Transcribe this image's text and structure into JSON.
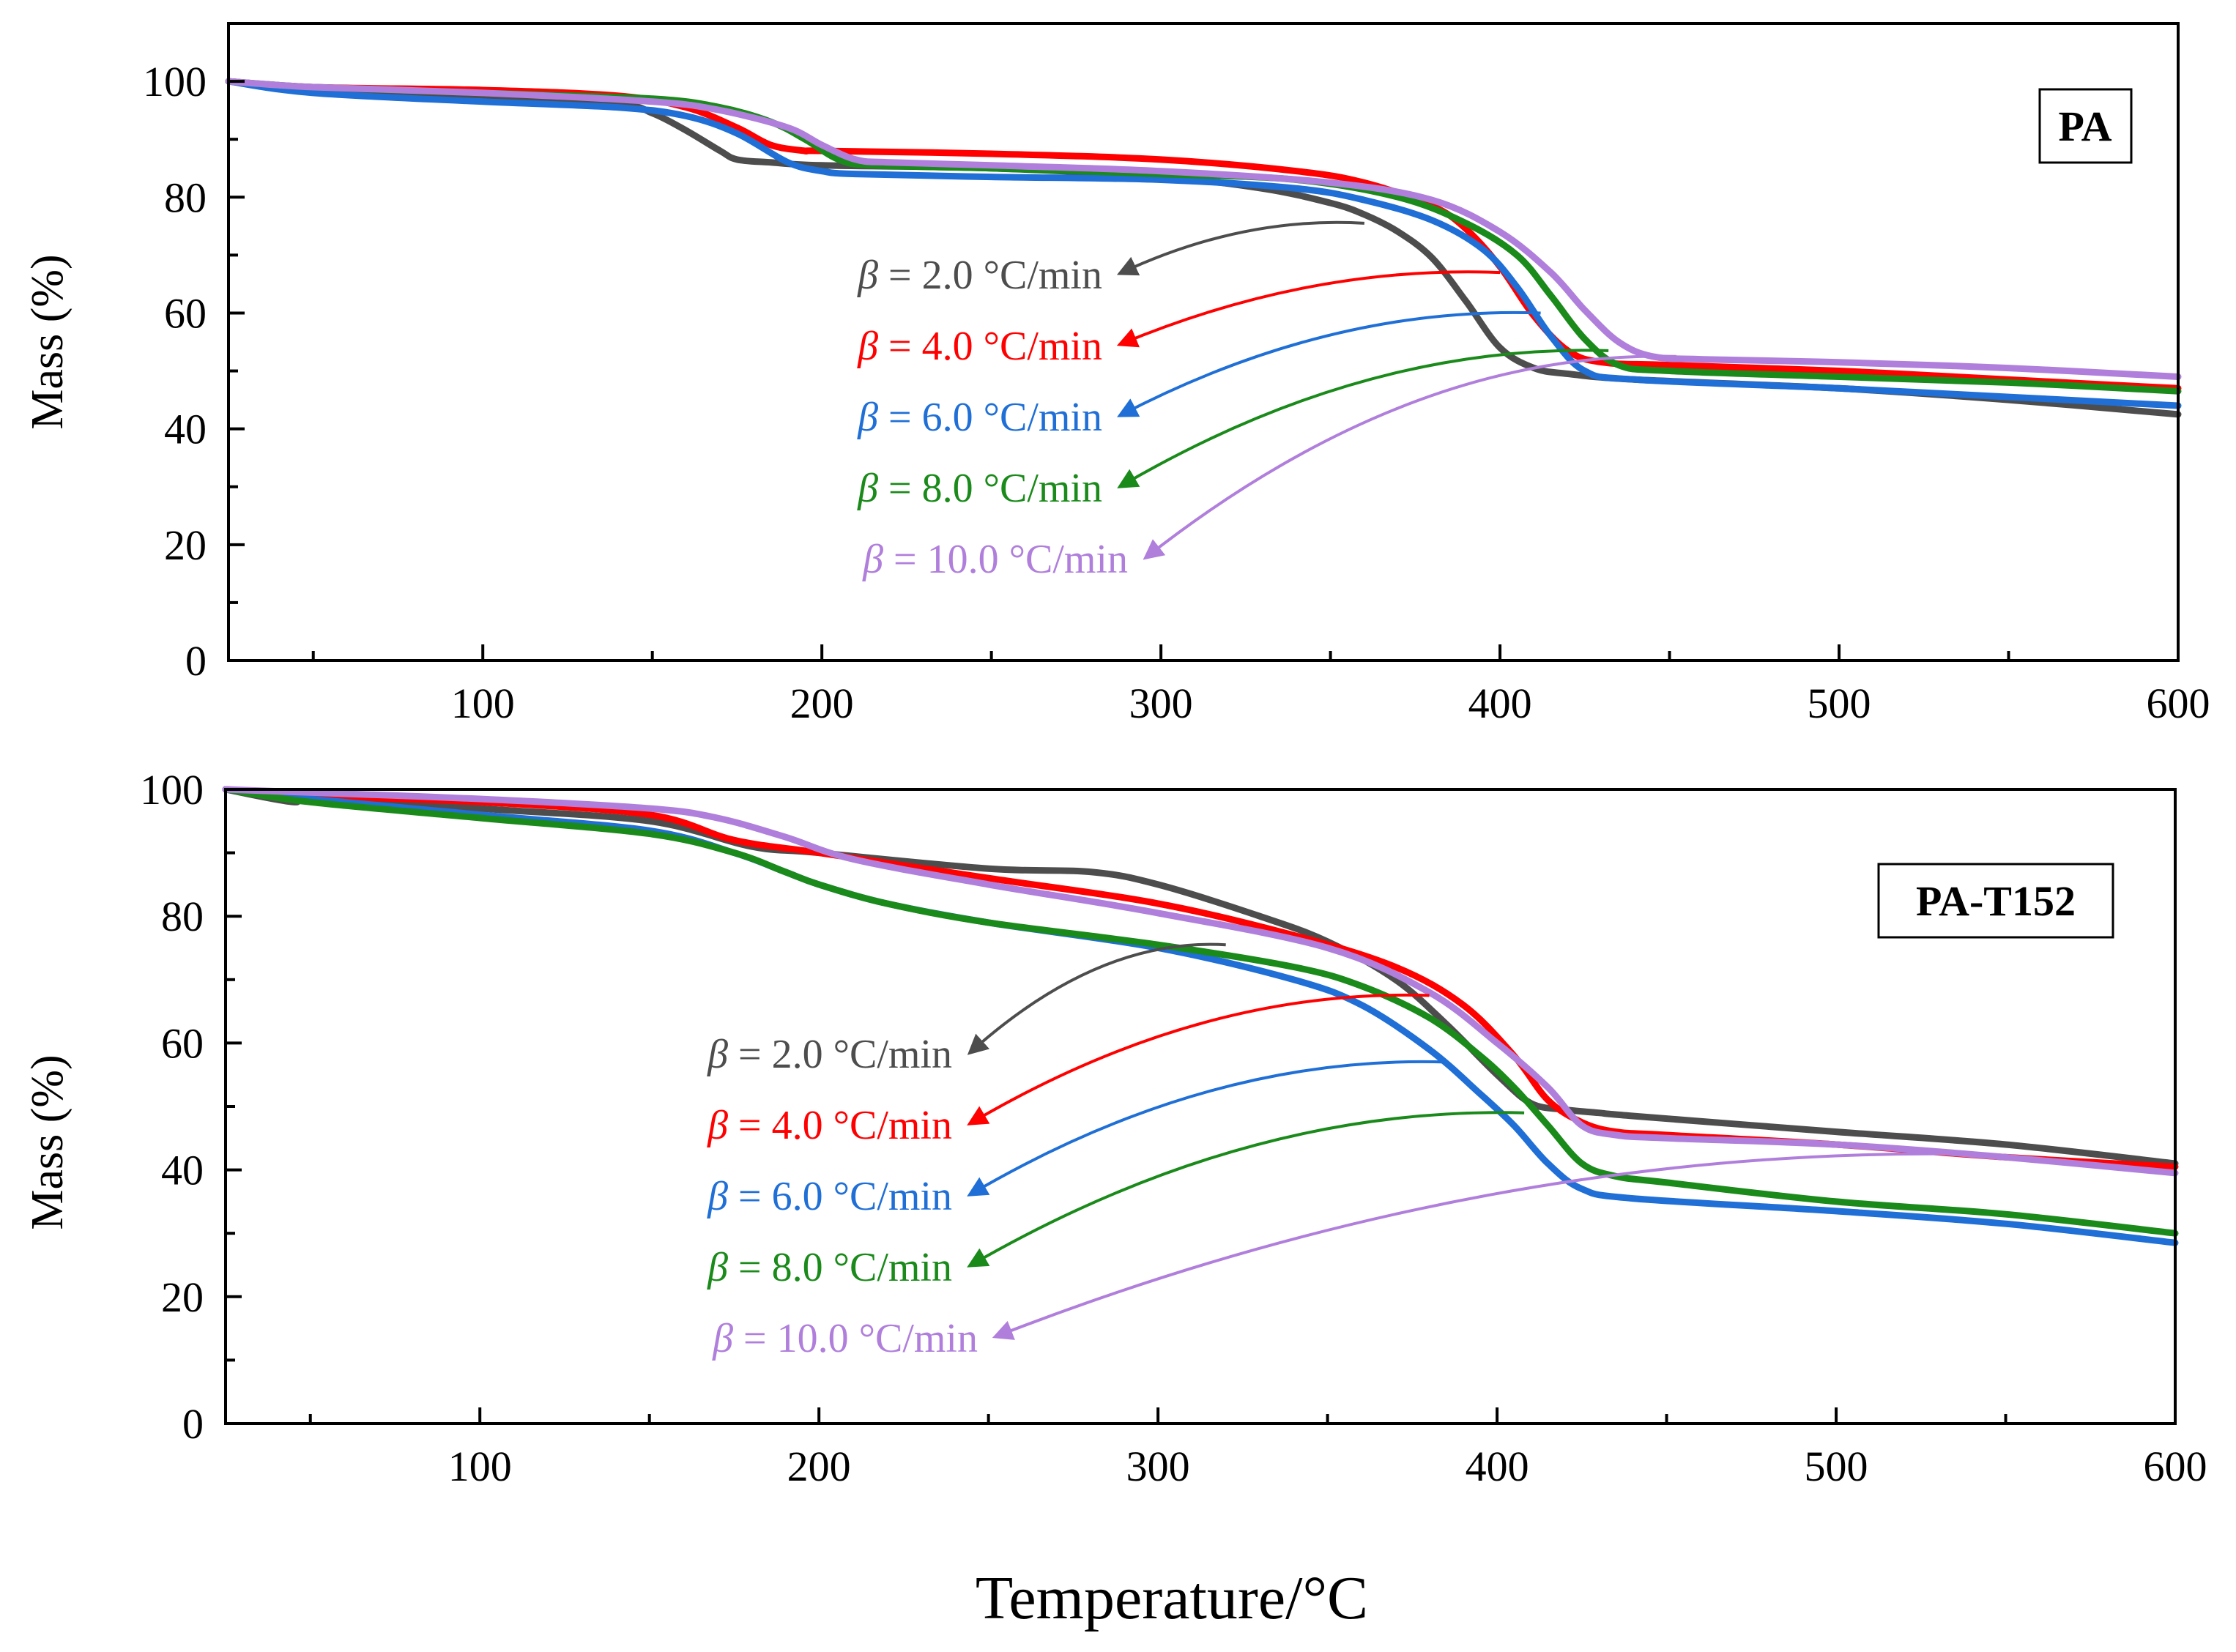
{
  "figure": {
    "x_title": "Temperature/°C"
  },
  "chart_data": [
    {
      "type": "line",
      "panel_label": "PA",
      "ylabel": "Mass (%)",
      "xlim": [
        25,
        600
      ],
      "ylim": [
        0,
        110
      ],
      "x_ticks": [
        100,
        200,
        300,
        400,
        500,
        600
      ],
      "y_ticks": [
        0,
        20,
        40,
        60,
        80,
        100
      ],
      "grid": false,
      "series": [
        {
          "name": "β = 2.0 °C/min",
          "beta_symbol": "β",
          "rate_text": " = 2.0 °C/min",
          "color": "#4d4d4d",
          "x": [
            25,
            50,
            100,
            140,
            150,
            160,
            170,
            175,
            185,
            200,
            250,
            300,
            330,
            350,
            360,
            370,
            380,
            390,
            400,
            410,
            420,
            440,
            500,
            550,
            600
          ],
          "y": [
            100,
            98.5,
            97,
            96,
            94.5,
            91.5,
            88,
            86.5,
            86,
            85.5,
            85,
            83.5,
            81.5,
            79,
            77,
            74,
            69.5,
            62,
            54,
            50.5,
            49.5,
            48.5,
            47,
            45,
            42.5
          ],
          "annotation_end": [
            360,
            75.5
          ]
        },
        {
          "name": "β = 4.0 °C/min",
          "beta_symbol": "β",
          "rate_text": " = 4.0 °C/min",
          "color": "#ff0000",
          "x": [
            25,
            50,
            100,
            140,
            160,
            175,
            185,
            195,
            200,
            250,
            300,
            340,
            360,
            380,
            390,
            400,
            410,
            420,
            430,
            450,
            500,
            550,
            600
          ],
          "y": [
            100,
            99,
            98.5,
            97.5,
            95.5,
            92,
            89,
            88,
            88,
            87.5,
            86.5,
            84.5,
            82.5,
            78.5,
            74.5,
            68,
            59.5,
            53.5,
            51.5,
            51,
            50,
            48.5,
            47
          ],
          "annotation_end": [
            400,
            67
          ]
        },
        {
          "name": "β = 6.0 °C/min",
          "beta_symbol": "β",
          "rate_text": " = 6.0 °C/min",
          "color": "#1f6fd6",
          "x": [
            25,
            50,
            100,
            140,
            160,
            175,
            190,
            200,
            210,
            250,
            300,
            340,
            360,
            380,
            395,
            405,
            415,
            425,
            440,
            500,
            550,
            600
          ],
          "y": [
            100,
            98,
            96.5,
            95.5,
            94,
            91,
            86,
            84.5,
            84,
            83.5,
            83,
            81.5,
            79.5,
            76,
            71,
            64.5,
            56,
            50,
            48.5,
            47,
            45.5,
            44
          ],
          "annotation_end": [
            412,
            60
          ]
        },
        {
          "name": "β = 8.0 °C/min",
          "beta_symbol": "β",
          "rate_text": " = 8.0 °C/min",
          "color": "#1a8a1a",
          "x": [
            25,
            50,
            100,
            150,
            170,
            185,
            195,
            205,
            215,
            250,
            300,
            340,
            370,
            390,
            405,
            415,
            425,
            435,
            450,
            500,
            550,
            600
          ],
          "y": [
            100,
            99,
            98,
            97,
            95.5,
            93,
            90,
            86.5,
            85.5,
            85,
            84,
            83,
            80,
            75.5,
            70,
            63,
            55.5,
            51,
            50,
            49,
            48,
            46.5
          ],
          "annotation_end": [
            432,
            53.5
          ]
        },
        {
          "name": "β = 10.0 °C/min",
          "beta_symbol": "β",
          "rate_text": " = 10.0 °C/min",
          "color": "#b07fdc",
          "x": [
            25,
            50,
            100,
            150,
            170,
            190,
            200,
            210,
            220,
            250,
            300,
            350,
            380,
            400,
            415,
            425,
            435,
            445,
            460,
            500,
            550,
            600
          ],
          "y": [
            100,
            99,
            98,
            96.5,
            95,
            92,
            89,
            86.5,
            86,
            85.5,
            84.5,
            82.5,
            79.5,
            74,
            67,
            60.5,
            55,
            52.5,
            52,
            51.5,
            50.5,
            49
          ],
          "annotation_end": [
            452,
            52.5
          ]
        }
      ]
    },
    {
      "type": "line",
      "panel_label": "PA-T152",
      "ylabel": "Mass (%)",
      "xlim": [
        25,
        600
      ],
      "ylim": [
        0,
        100
      ],
      "x_ticks": [
        100,
        200,
        300,
        400,
        500,
        600
      ],
      "y_ticks": [
        0,
        20,
        40,
        60,
        80,
        100
      ],
      "grid": false,
      "series": [
        {
          "name": "β = 2.0 °C/min",
          "beta_symbol": "β",
          "rate_text": " = 2.0 °C/min",
          "color": "#4d4d4d",
          "x": [
            25,
            45,
            50,
            100,
            150,
            180,
            200,
            250,
            280,
            300,
            330,
            350,
            370,
            385,
            400,
            410,
            420,
            430,
            440,
            500,
            550,
            600
          ],
          "y": [
            100,
            98,
            99,
            97,
            95,
            91,
            90,
            87.5,
            87,
            85,
            80,
            76,
            70,
            63,
            55,
            50.5,
            49.5,
            49,
            48.5,
            46,
            44,
            41
          ],
          "annotation_end": [
            320,
            75.5
          ]
        },
        {
          "name": "β = 4.0 °C/min",
          "beta_symbol": "β",
          "rate_text": " = 4.0 °C/min",
          "color": "#ff0000",
          "x": [
            25,
            50,
            100,
            150,
            175,
            200,
            250,
            300,
            340,
            370,
            390,
            405,
            415,
            425,
            435,
            450,
            500,
            550,
            600
          ],
          "y": [
            100,
            99,
            98,
            96,
            92,
            90,
            86,
            82,
            77,
            72,
            66,
            58,
            51,
            47.5,
            46,
            45.5,
            44,
            42,
            40.5
          ],
          "annotation_end": [
            380,
            67.5
          ]
        },
        {
          "name": "β = 6.0 °C/min",
          "beta_symbol": "β",
          "rate_text": " = 6.0 °C/min",
          "color": "#1f6fd6",
          "x": [
            25,
            50,
            100,
            150,
            175,
            190,
            200,
            220,
            250,
            300,
            340,
            360,
            380,
            395,
            405,
            415,
            425,
            440,
            500,
            550,
            600
          ],
          "y": [
            100,
            98.5,
            96,
            93.5,
            90,
            87,
            85,
            82,
            79,
            75,
            70,
            66,
            59,
            52,
            47,
            41,
            37,
            35.5,
            33.5,
            31.5,
            28.5
          ],
          "annotation_end": [
            385,
            57
          ]
        },
        {
          "name": "β = 8.0 °C/min",
          "beta_symbol": "β",
          "rate_text": " = 8.0 °C/min",
          "color": "#1a8a1a",
          "x": [
            25,
            50,
            100,
            150,
            175,
            190,
            200,
            220,
            250,
            300,
            340,
            360,
            380,
            395,
            405,
            415,
            425,
            435,
            450,
            500,
            550,
            600
          ],
          "y": [
            100,
            98,
            95.5,
            93,
            90,
            87,
            85,
            82,
            79,
            75.5,
            72,
            69,
            64,
            58,
            53,
            47,
            41,
            39,
            38,
            35,
            33,
            30
          ],
          "annotation_end": [
            408,
            49
          ]
        },
        {
          "name": "β = 10.0 °C/min",
          "beta_symbol": "β",
          "rate_text": " = 10.0 °C/min",
          "color": "#b07fdc",
          "x": [
            25,
            50,
            100,
            150,
            170,
            190,
            210,
            250,
            300,
            350,
            380,
            400,
            415,
            425,
            435,
            450,
            500,
            550,
            600
          ],
          "y": [
            100,
            99.5,
            98.5,
            97,
            95.5,
            92.5,
            89,
            85,
            80.5,
            75,
            68,
            60,
            53,
            47,
            45.5,
            45,
            44,
            42,
            39.5
          ],
          "annotation_end": [
            540,
            42.5
          ]
        }
      ]
    }
  ]
}
